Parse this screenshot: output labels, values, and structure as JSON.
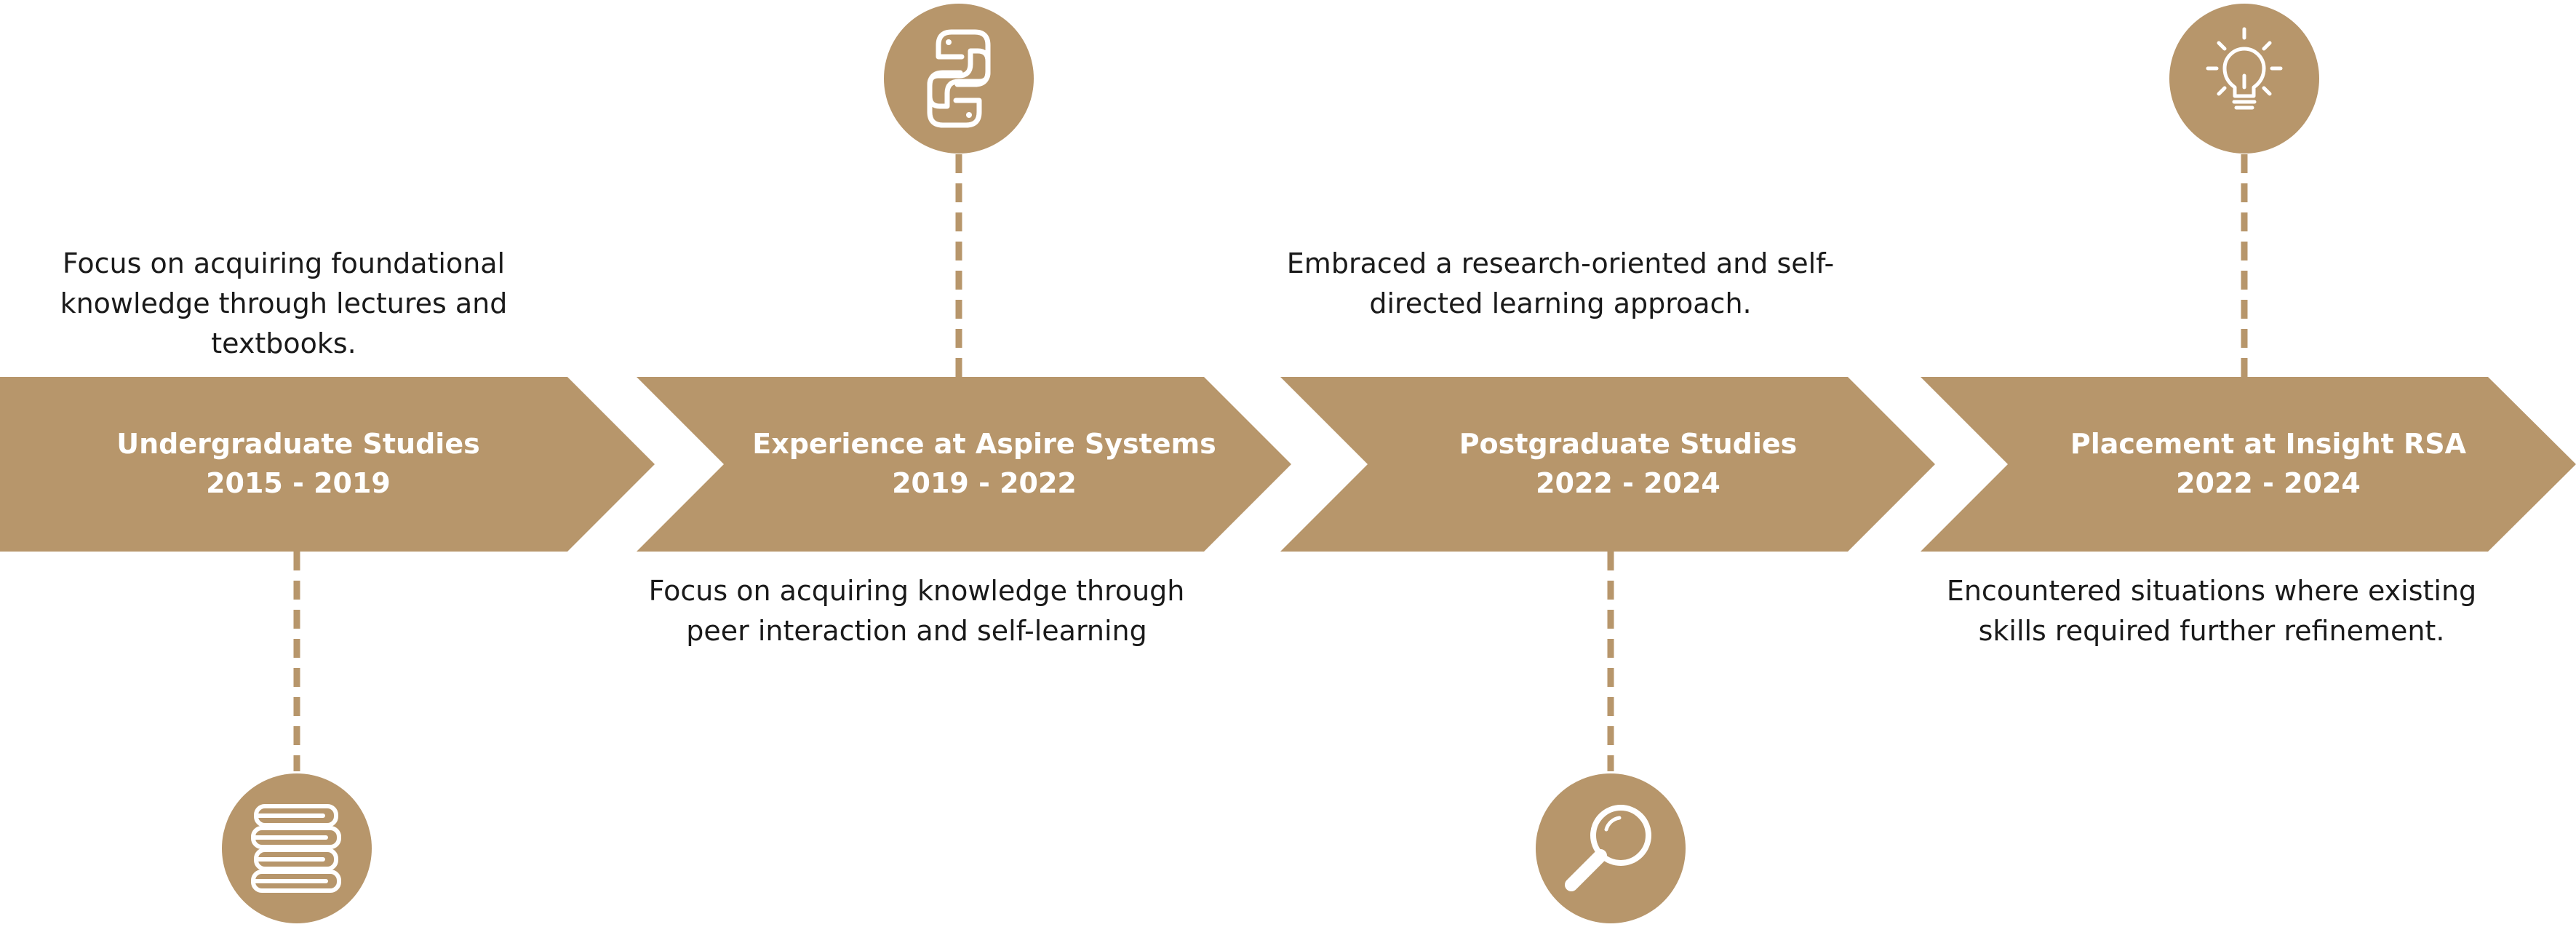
{
  "colors": {
    "accent": "#b7966b",
    "text": "#1a1a1a",
    "label": "#ffffff",
    "background": "#ffffff"
  },
  "stages": [
    {
      "title": "Undergraduate Studies",
      "years": "2015 - 2019",
      "description": "Focus on acquiring foundational knowledge through lectures and textbooks.",
      "icon": "books-icon"
    },
    {
      "title": "Experience at Aspire Systems",
      "years": "2019 - 2022",
      "description": "Focus on acquiring knowledge through peer interaction and self-learning",
      "icon": "python-logo-icon"
    },
    {
      "title": "Postgraduate Studies",
      "years": "2022 - 2024",
      "description": "Embraced a research-oriented and self-directed learning approach.",
      "icon": "magnifier-icon"
    },
    {
      "title": "Placement at Insight RSA",
      "years": "2022 - 2024",
      "description": "Encountered situations where existing skills required further refinement.",
      "icon": "lightbulb-icon"
    }
  ]
}
